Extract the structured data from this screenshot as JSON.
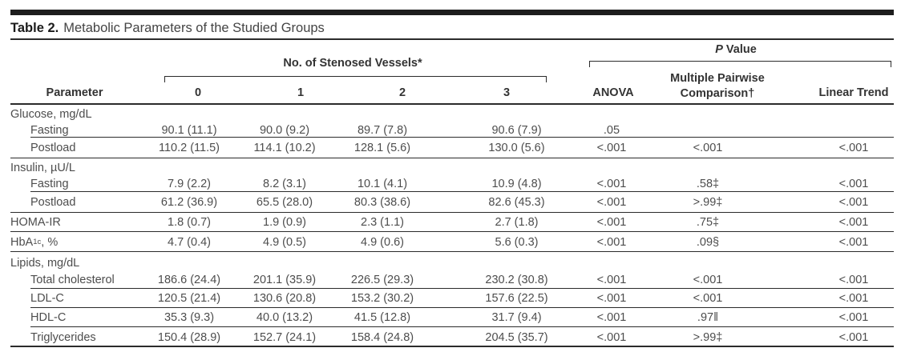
{
  "table": {
    "title_label": "Table 2.",
    "title_text": "Metabolic Parameters of the Studied Groups",
    "header": {
      "parameter": "Parameter",
      "vessels_group": "No. of Stenosed Vessels*",
      "vessel_cols": [
        "0",
        "1",
        "2",
        "3"
      ],
      "pvalue_group_italic": "P",
      "pvalue_group_rest": "Value",
      "anova": "ANOVA",
      "pairwise": "Multiple Pairwise Comparison†",
      "linear": "Linear Trend"
    },
    "rows": [
      {
        "kind": "group",
        "label": "Glucose, mg/dL",
        "rule": "none"
      },
      {
        "kind": "data",
        "label": "Fasting",
        "indent": true,
        "values": [
          "90.1 (11.1)",
          "90.0 (9.2)",
          "89.7 (7.8)",
          "90.6 (7.9)",
          ".05",
          "",
          ""
        ],
        "rule": "indent"
      },
      {
        "kind": "data",
        "label": "Postload",
        "indent": true,
        "values": [
          "110.2 (11.5)",
          "114.1 (10.2)",
          "128.1 (5.6)",
          "130.0 (5.6)",
          "<.001",
          "<.001",
          "<.001"
        ],
        "rule": "full"
      },
      {
        "kind": "group",
        "label": "Insulin, µU/L",
        "rule": "none"
      },
      {
        "kind": "data",
        "label": "Fasting",
        "indent": true,
        "values": [
          "7.9 (2.2)",
          "8.2 (3.1)",
          "10.1 (4.1)",
          "10.9 (4.8)",
          "<.001",
          ".58‡",
          "<.001"
        ],
        "rule": "indent"
      },
      {
        "kind": "data",
        "label": "Postload",
        "indent": true,
        "values": [
          "61.2 (36.9)",
          "65.5 (28.0)",
          "80.3 (38.6)",
          "82.6 (45.3)",
          "<.001",
          ">.99‡",
          "<.001"
        ],
        "rule": "full"
      },
      {
        "kind": "data",
        "label": "HOMA-IR",
        "indent": false,
        "values": [
          "1.8 (0.7)",
          "1.9 (0.9)",
          "2.3 (1.1)",
          "2.7 (1.8)",
          "<.001",
          ".75‡",
          "<.001"
        ],
        "rule": "full"
      },
      {
        "kind": "data",
        "label": "HbA1c, %",
        "label_parts": {
          "pre": "HbA",
          "sub": "1c",
          "post": ", %"
        },
        "indent": false,
        "values": [
          "4.7 (0.4)",
          "4.9 (0.5)",
          "4.9 (0.6)",
          "5.6 (0.3)",
          "<.001",
          ".09§",
          "<.001"
        ],
        "rule": "full"
      },
      {
        "kind": "group",
        "label": "Lipids, mg/dL",
        "rule": "none"
      },
      {
        "kind": "data",
        "label": "Total cholesterol",
        "indent": true,
        "values": [
          "186.6 (24.4)",
          "201.1 (35.9)",
          "226.5 (29.3)",
          "230.2 (30.8)",
          "<.001",
          "<.001",
          "<.001"
        ],
        "rule": "indent"
      },
      {
        "kind": "data",
        "label": "LDL-C",
        "indent": true,
        "values": [
          "120.5 (21.4)",
          "130.6 (20.8)",
          "153.2 (30.2)",
          "157.6 (22.5)",
          "<.001",
          "<.001",
          "<.001"
        ],
        "rule": "indent"
      },
      {
        "kind": "data",
        "label": "HDL-C",
        "indent": true,
        "values": [
          "35.3 (9.3)",
          "40.0 (13.2)",
          "41.5 (12.8)",
          "31.7 (9.4)",
          "<.001",
          ".97‖",
          "<.001"
        ],
        "rule": "indent"
      },
      {
        "kind": "data",
        "label": "Triglycerides",
        "indent": true,
        "values": [
          "150.4 (28.9)",
          "152.7 (24.1)",
          "158.4 (24.8)",
          "204.5 (35.7)",
          "<.001",
          ">.99‡",
          "<.001"
        ],
        "rule": "bottom"
      }
    ]
  },
  "colors": {
    "text": "#4d4d4d",
    "rule": "#2b2b2b",
    "bar": "#1d1d1d",
    "background": "#ffffff"
  }
}
